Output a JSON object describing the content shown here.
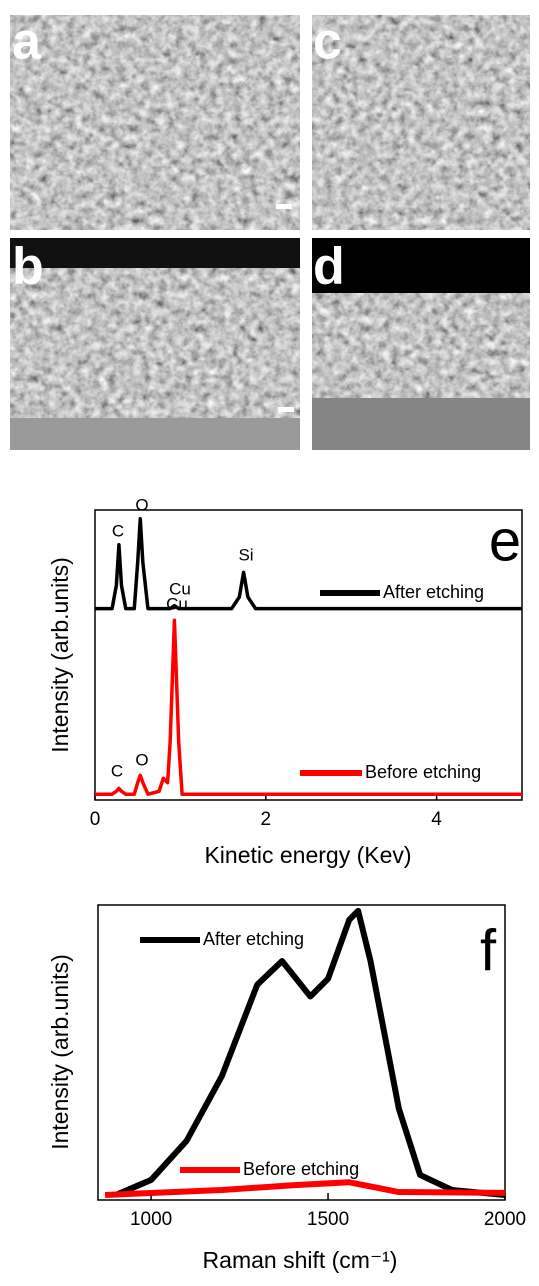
{
  "panels": [
    {
      "label": "a"
    },
    {
      "label": "c"
    },
    {
      "label": "b"
    },
    {
      "label": "d"
    }
  ],
  "chart_data": [
    {
      "type": "line",
      "panel_label": "e",
      "x_label": "Kinetic energy (Kev)",
      "y_label": "Intensity (arb.units)",
      "xlim": [
        0,
        5
      ],
      "xticks": [
        0,
        2,
        4
      ],
      "ylim": [
        0,
        100
      ],
      "x": [
        0,
        0.2,
        0.25,
        0.28,
        0.31,
        0.36,
        0.46,
        0.5,
        0.53,
        0.56,
        0.62,
        0.75,
        0.8,
        0.85,
        0.88,
        0.93,
        0.98,
        1.02,
        1.6,
        1.69,
        1.74,
        1.79,
        1.88,
        3,
        5
      ],
      "series": [
        {
          "name": "After etching",
          "color": "#000000",
          "values": [
            66,
            66,
            74,
            88,
            74,
            66,
            66,
            82,
            97,
            82,
            66,
            66,
            66,
            66,
            66,
            67,
            66,
            66,
            66,
            70,
            78.5,
            70,
            66,
            66,
            66
          ]
        },
        {
          "name": "Before etching",
          "color": "#ff0000",
          "values": [
            2,
            2,
            3,
            4,
            3,
            2,
            2,
            6,
            8.5,
            6,
            2,
            3,
            7.5,
            6,
            20,
            62,
            20,
            2,
            2,
            2,
            2,
            2,
            2,
            2,
            2
          ]
        }
      ],
      "annotations": [
        "C",
        "O",
        "Cu",
        "Si",
        "Cu",
        "C",
        "O"
      ]
    },
    {
      "type": "line",
      "panel_label": "f",
      "x_label": "Raman shift (cm⁻¹)",
      "y_label": "Intensity (arb.units)",
      "xlim": [
        850,
        2000
      ],
      "xticks": [
        1000,
        1500,
        2000
      ],
      "ylim": [
        0,
        100
      ],
      "series": [
        {
          "name": "After etching",
          "color": "#000000",
          "x": [
            900,
            1000,
            1100,
            1200,
            1300,
            1370,
            1450,
            1500,
            1560,
            1585,
            1620,
            1700,
            1760,
            1850,
            2000
          ],
          "values": [
            1.7,
            6.8,
            20,
            42,
            73,
            81,
            69,
            75,
            95,
            98,
            81,
            31,
            8.5,
            3.4,
            1.7
          ]
        },
        {
          "name": "Before etching",
          "color": "#ff0000",
          "x": [
            870,
            1200,
            1400,
            1560,
            1700,
            2000
          ],
          "values": [
            1.7,
            3.4,
            5,
            6,
            2.7,
            2.4
          ]
        }
      ]
    }
  ]
}
